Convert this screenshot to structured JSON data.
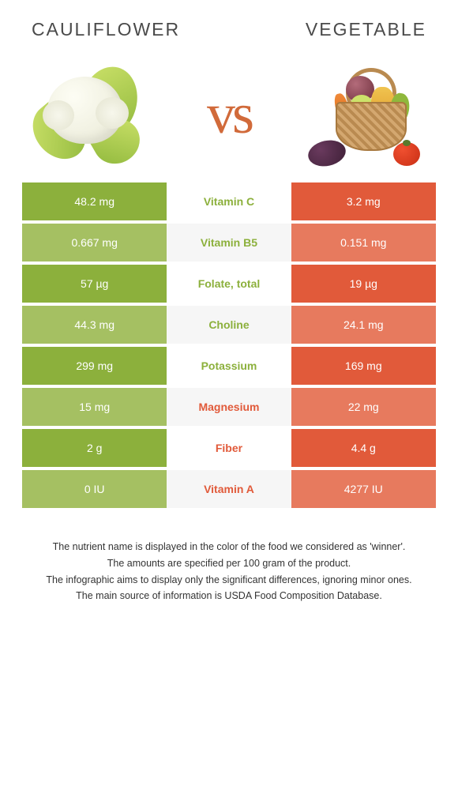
{
  "colors": {
    "left_dark": "#8cb03c",
    "left_light": "#a5c062",
    "right_dark": "#e15a3a",
    "right_light": "#e77a5e",
    "label_left": "#8cb03c",
    "label_right": "#e15a3a",
    "vs": "#d16a3a"
  },
  "left": {
    "title": "Cauliflower"
  },
  "right": {
    "title": "Vegetable"
  },
  "vs": "vs",
  "rows": [
    {
      "label": "Vitamin C",
      "left": "48.2 mg",
      "right": "3.2 mg",
      "winner": "left"
    },
    {
      "label": "Vitamin B5",
      "left": "0.667 mg",
      "right": "0.151 mg",
      "winner": "left"
    },
    {
      "label": "Folate, total",
      "left": "57 µg",
      "right": "19 µg",
      "winner": "left"
    },
    {
      "label": "Choline",
      "left": "44.3 mg",
      "right": "24.1 mg",
      "winner": "left"
    },
    {
      "label": "Potassium",
      "left": "299 mg",
      "right": "169 mg",
      "winner": "left"
    },
    {
      "label": "Magnesium",
      "left": "15 mg",
      "right": "22 mg",
      "winner": "right"
    },
    {
      "label": "Fiber",
      "left": "2 g",
      "right": "4.4 g",
      "winner": "right"
    },
    {
      "label": "Vitamin A",
      "left": "0 IU",
      "right": "4277 IU",
      "winner": "right"
    }
  ],
  "footnotes": [
    "The nutrient name is displayed in the color of the food we considered as 'winner'.",
    "The amounts are specified per 100 gram of the product.",
    "The infographic aims to display only the significant differences, ignoring minor ones.",
    "The main source of information is USDA Food Composition Database."
  ]
}
